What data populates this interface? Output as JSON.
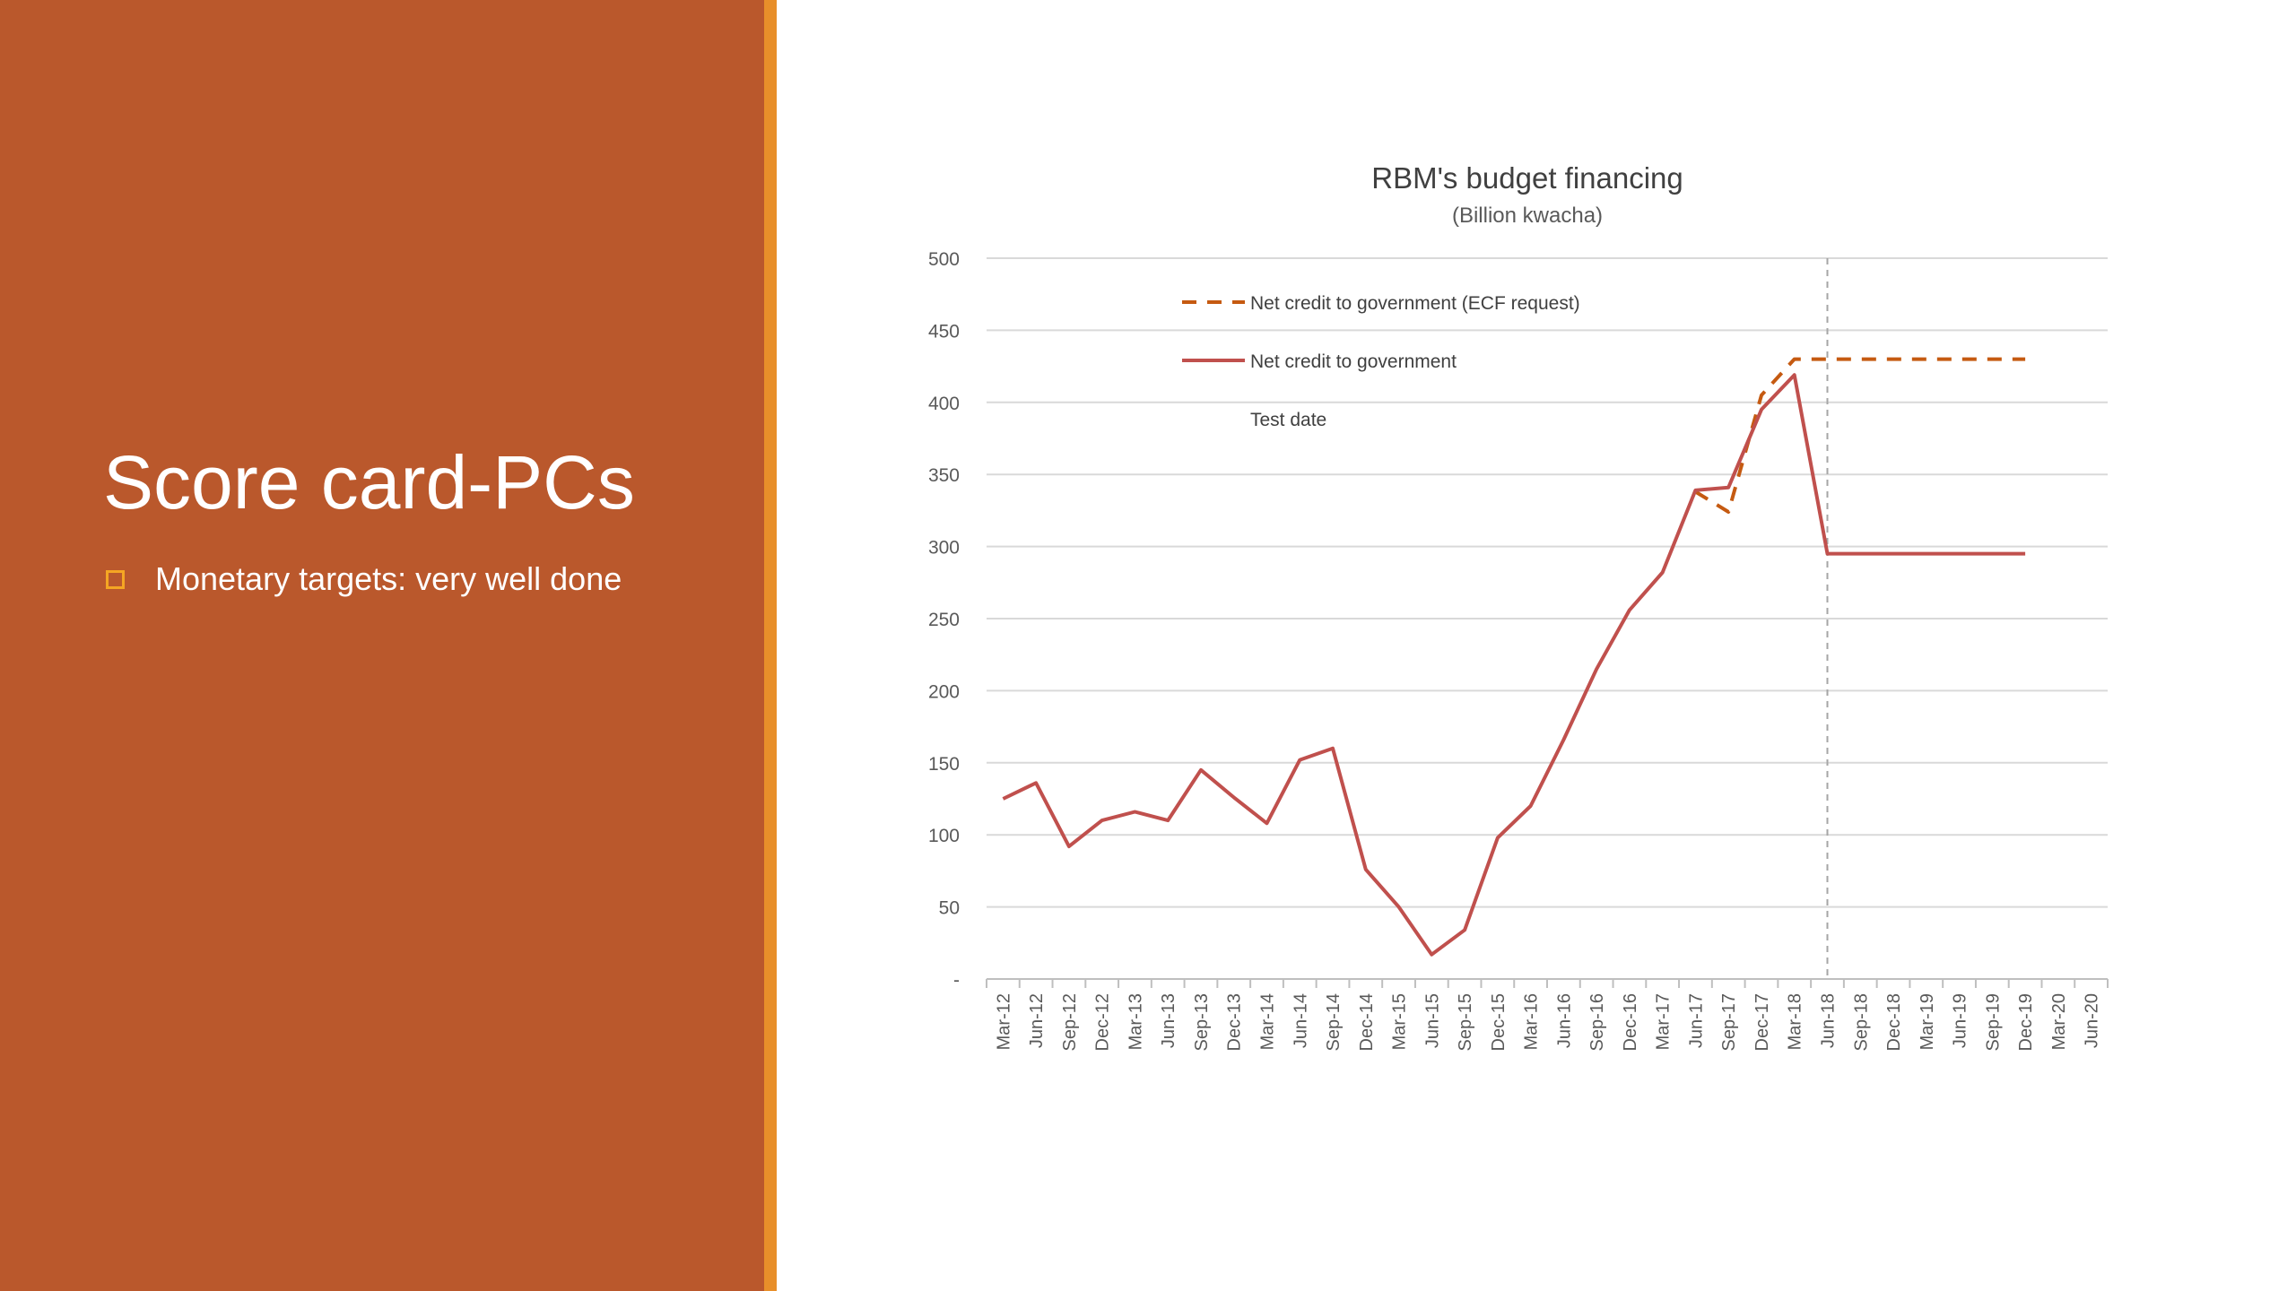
{
  "slide": {
    "title": "Score card-PCs",
    "bullet": "Monetary targets: very well done",
    "colors": {
      "panel": "#BA582C",
      "accent_bar": "#E88F2A",
      "bullet_icon": "#F5A623"
    }
  },
  "chart_data": {
    "type": "line",
    "title": "RBM's budget financing",
    "subtitle": "(Billion kwacha)",
    "xlabel": "",
    "ylabel": "",
    "ylim": [
      0,
      500
    ],
    "y_ticks": [
      0,
      50,
      100,
      150,
      200,
      250,
      300,
      350,
      400,
      450,
      500
    ],
    "y_tick_labels": [
      "-",
      "50",
      "100",
      "150",
      "200",
      "250",
      "300",
      "350",
      "400",
      "450",
      "500"
    ],
    "grid": true,
    "legend_position": "top-left inside plot",
    "categories": [
      "Mar-12",
      "Jun-12",
      "Sep-12",
      "Dec-12",
      "Mar-13",
      "Jun-13",
      "Sep-13",
      "Dec-13",
      "Mar-14",
      "Jun-14",
      "Sep-14",
      "Dec-14",
      "Mar-15",
      "Jun-15",
      "Sep-15",
      "Dec-15",
      "Mar-16",
      "Jun-16",
      "Sep-16",
      "Dec-16",
      "Mar-17",
      "Jun-17",
      "Sep-17",
      "Dec-17",
      "Mar-18",
      "Jun-18",
      "Sep-18",
      "Dec-18",
      "Mar-19",
      "Jun-19",
      "Sep-19",
      "Dec-19",
      "Mar-20",
      "Jun-20"
    ],
    "series": [
      {
        "name": "Net credit to government (ECF request)",
        "style": "dashed",
        "color": "#C55A11",
        "values": [
          null,
          null,
          null,
          null,
          null,
          null,
          null,
          null,
          null,
          null,
          null,
          null,
          null,
          null,
          null,
          null,
          null,
          null,
          null,
          null,
          null,
          338,
          324,
          405,
          430,
          430,
          430,
          430,
          430,
          430,
          430,
          430,
          null,
          null
        ]
      },
      {
        "name": "Net credit to government",
        "style": "solid",
        "color": "#C0504D",
        "values": [
          125,
          136,
          92,
          110,
          116,
          110,
          145,
          126,
          108,
          152,
          160,
          76,
          50,
          17,
          34,
          98,
          120,
          166,
          215,
          256,
          282,
          339,
          341,
          395,
          419,
          295,
          295,
          295,
          295,
          295,
          295,
          295,
          null,
          null
        ]
      }
    ],
    "reference_line": {
      "label": "Test date",
      "x": "Jun-18",
      "style": "dashed",
      "color": "#A6A6A6"
    }
  }
}
